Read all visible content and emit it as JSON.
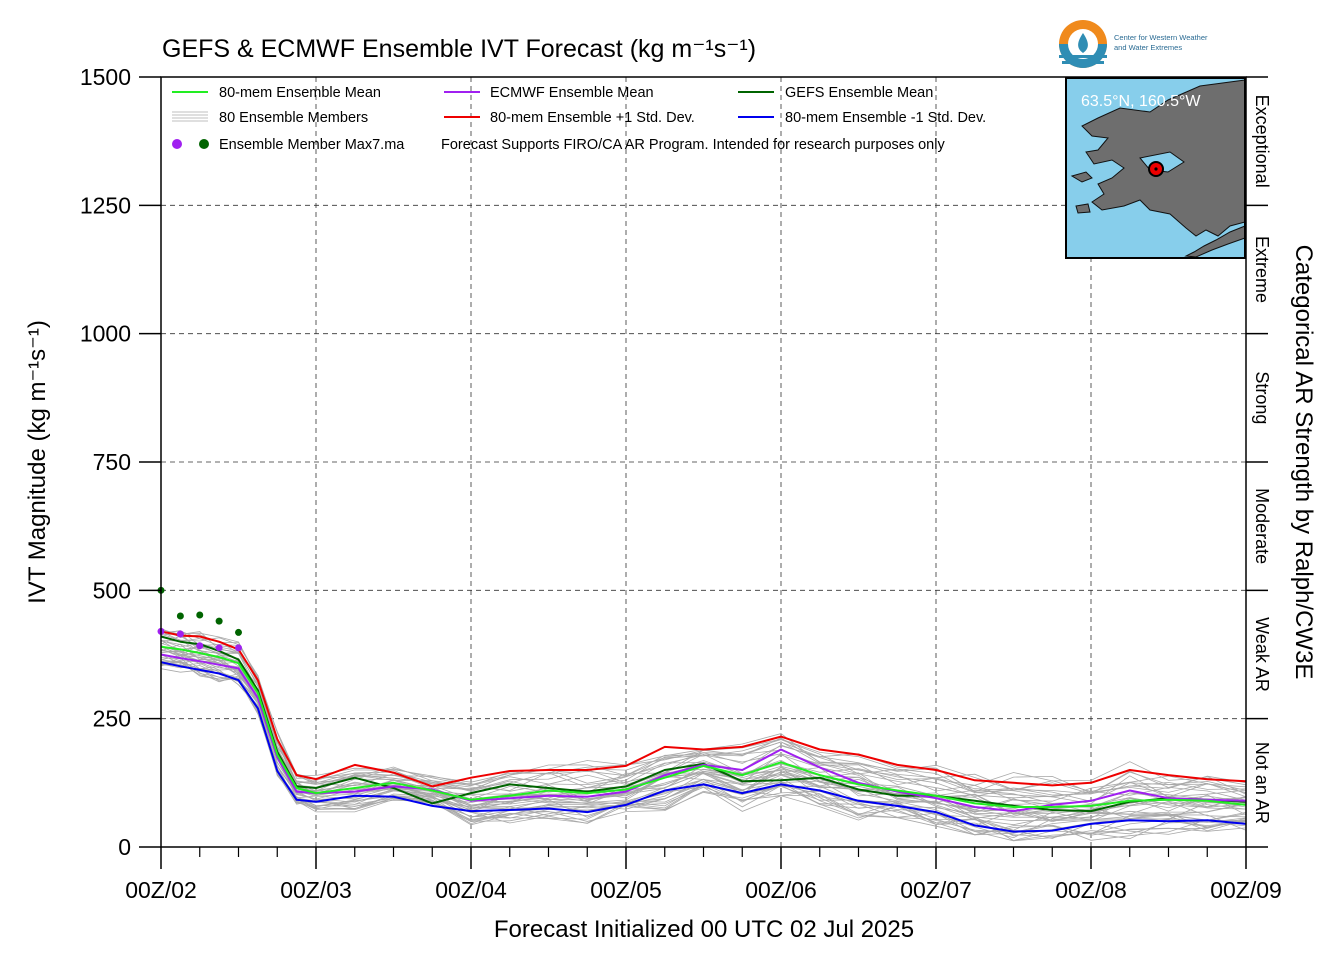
{
  "chart_data": {
    "type": "line",
    "title": "GEFS & ECMWF Ensemble IVT Forecast (kg m⁻¹s⁻¹)",
    "xlabel": "Forecast Initialized 00 UTC 02 Jul 2025",
    "ylabel": "IVT Magnitude (kg m⁻¹s⁻¹)",
    "right_label": "Categorical AR Strength by Ralph/CW3E",
    "x_unit": "days since 00Z/02",
    "xlim": [
      0,
      7
    ],
    "ylim": [
      0,
      1500
    ],
    "grid": true,
    "x_ticks": [
      "00Z/02",
      "00Z/03",
      "00Z/04",
      "00Z/05",
      "00Z/06",
      "00Z/07",
      "00Z/08",
      "00Z/09"
    ],
    "y_ticks": [
      "0",
      "250",
      "500",
      "750",
      "1000",
      "1250",
      "1500"
    ],
    "categories": [
      {
        "label": "Not an AR",
        "range": [
          0,
          250
        ]
      },
      {
        "label": "Weak AR",
        "range": [
          250,
          500
        ]
      },
      {
        "label": "Moderate",
        "range": [
          500,
          750
        ]
      },
      {
        "label": "Strong",
        "range": [
          750,
          1000
        ]
      },
      {
        "label": "Extreme",
        "range": [
          1000,
          1250
        ]
      },
      {
        "label": "Exceptional",
        "range": [
          1250,
          1500
        ]
      }
    ],
    "legend": {
      "placement": "top-left",
      "items": [
        {
          "label": "80-mem Ensemble Mean",
          "color": "#22ee22"
        },
        {
          "label": "ECMWF Ensemble Mean",
          "color": "#a020f0"
        },
        {
          "label": "GEFS Ensemble Mean",
          "color": "#006400"
        },
        {
          "label": "80 Ensemble Members",
          "color": "#aaaaaa"
        },
        {
          "label": "80-mem Ensemble +1 Std. Dev.",
          "color": "#ee0000"
        },
        {
          "label": "80-mem Ensemble -1 Std. Dev.",
          "color": "#0000ee"
        },
        {
          "label": "Ensemble Member Max7.ma",
          "color": "#a020f0"
        }
      ],
      "note": "Forecast Supports FIRO/CA AR Program. Intended for research purposes only"
    },
    "location_label": "63.5°N, 160.5°W",
    "logo_text": [
      "Center for Western Weather",
      "and Water Extremes"
    ],
    "series": [
      {
        "name": "80-mem Ensemble Mean",
        "color": "#22ee22",
        "x": [
          0,
          0.125,
          0.25,
          0.375,
          0.5,
          0.625,
          0.75,
          0.875,
          1,
          1.25,
          1.5,
          1.75,
          2,
          2.25,
          2.5,
          2.75,
          3,
          3.25,
          3.5,
          3.75,
          4,
          4.25,
          4.5,
          4.75,
          5,
          5.25,
          5.5,
          5.75,
          6,
          6.25,
          6.5,
          6.75,
          7
        ],
        "y": [
          390,
          385,
          378,
          370,
          358,
          300,
          180,
          115,
          105,
          115,
          125,
          110,
          92,
          100,
          110,
          105,
          112,
          135,
          158,
          140,
          165,
          140,
          122,
          110,
          100,
          85,
          78,
          78,
          80,
          90,
          92,
          90,
          82
        ]
      },
      {
        "name": "ECMWF Ensemble Mean",
        "color": "#a020f0",
        "x": [
          0,
          0.125,
          0.25,
          0.375,
          0.5,
          0.625,
          0.75,
          0.875,
          1,
          1.25,
          1.5,
          1.75,
          2,
          2.25,
          2.5,
          2.75,
          3,
          3.25,
          3.5,
          3.75,
          4,
          4.25,
          4.5,
          4.75,
          5,
          5.25,
          5.5,
          5.75,
          6,
          6.25,
          6.5,
          6.75,
          7
        ],
        "y": [
          375,
          368,
          362,
          355,
          348,
          290,
          175,
          108,
          105,
          108,
          118,
          112,
          90,
          95,
          100,
          98,
          108,
          140,
          160,
          150,
          190,
          155,
          125,
          108,
          95,
          78,
          70,
          82,
          90,
          110,
          95,
          92,
          90
        ]
      },
      {
        "name": "GEFS Ensemble Mean",
        "color": "#006400",
        "x": [
          0,
          0.125,
          0.25,
          0.375,
          0.5,
          0.625,
          0.75,
          0.875,
          1,
          1.25,
          1.5,
          1.75,
          2,
          2.25,
          2.5,
          2.75,
          3,
          3.25,
          3.5,
          3.75,
          4,
          4.25,
          4.5,
          4.75,
          5,
          5.25,
          5.5,
          5.75,
          6,
          6.25,
          6.5,
          6.75,
          7
        ],
        "y": [
          410,
          400,
          395,
          382,
          365,
          305,
          185,
          118,
          115,
          135,
          115,
          85,
          105,
          122,
          115,
          108,
          118,
          150,
          162,
          128,
          130,
          135,
          112,
          100,
          100,
          90,
          80,
          72,
          70,
          88,
          95,
          92,
          88
        ]
      },
      {
        "name": "80-mem Ensemble +1 Std. Dev.",
        "color": "#ee0000",
        "x": [
          0,
          0.125,
          0.25,
          0.375,
          0.5,
          0.625,
          0.75,
          0.875,
          1,
          1.25,
          1.5,
          1.75,
          2,
          2.25,
          2.5,
          2.75,
          3,
          3.25,
          3.5,
          3.75,
          4,
          4.25,
          4.5,
          4.75,
          5,
          5.25,
          5.5,
          5.75,
          6,
          6.25,
          6.5,
          6.75,
          7
        ],
        "y": [
          420,
          412,
          410,
          400,
          385,
          325,
          210,
          140,
          132,
          160,
          145,
          118,
          135,
          148,
          150,
          150,
          158,
          195,
          190,
          195,
          215,
          190,
          180,
          160,
          150,
          130,
          125,
          120,
          125,
          150,
          140,
          132,
          128
        ]
      },
      {
        "name": "80-mem Ensemble -1 Std. Dev.",
        "color": "#0000ee",
        "x": [
          0,
          0.125,
          0.25,
          0.375,
          0.5,
          0.625,
          0.75,
          0.875,
          1,
          1.25,
          1.5,
          1.75,
          2,
          2.25,
          2.5,
          2.75,
          3,
          3.25,
          3.5,
          3.75,
          4,
          4.25,
          4.5,
          4.75,
          5,
          5.25,
          5.5,
          5.75,
          6,
          6.25,
          6.5,
          6.75,
          7
        ],
        "y": [
          360,
          352,
          345,
          338,
          325,
          270,
          148,
          92,
          88,
          100,
          98,
          80,
          70,
          72,
          75,
          68,
          82,
          110,
          122,
          105,
          122,
          110,
          90,
          80,
          68,
          42,
          30,
          32,
          45,
          52,
          50,
          52,
          45
        ]
      }
    ],
    "member_max": {
      "ecmwf": {
        "color": "#a020f0",
        "x": [
          0,
          0.125,
          0.25,
          0.375,
          0.5
        ],
        "y": [
          420,
          415,
          392,
          388,
          388
        ]
      },
      "gefs": {
        "color": "#006400",
        "x": [
          0,
          0.125,
          0.25,
          0.375,
          0.5
        ],
        "y": [
          500,
          450,
          452,
          440,
          418
        ]
      }
    }
  }
}
